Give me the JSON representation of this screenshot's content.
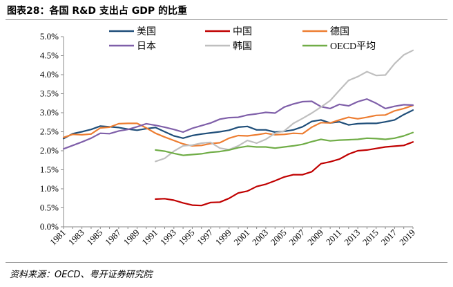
{
  "figure": {
    "title": "图表28：各国 R&D 支出占 GDP 的比重",
    "source": "资料来源：OECD、粤开证券研究院"
  },
  "chart_data": {
    "type": "line",
    "title": "图表28：各国 R&D 支出占 GDP 的比重",
    "xlabel": "",
    "ylabel": "",
    "x": [
      1981,
      1982,
      1983,
      1984,
      1985,
      1986,
      1987,
      1988,
      1989,
      1990,
      1991,
      1992,
      1993,
      1994,
      1995,
      1996,
      1997,
      1998,
      1999,
      2000,
      2001,
      2002,
      2003,
      2004,
      2005,
      2006,
      2007,
      2008,
      2009,
      2010,
      2011,
      2012,
      2013,
      2014,
      2015,
      2016,
      2017,
      2018,
      2019
    ],
    "x_ticks": [
      "1981",
      "1983",
      "1985",
      "1987",
      "1989",
      "1991",
      "1993",
      "1995",
      "1997",
      "1999",
      "2001",
      "2003",
      "2005",
      "2007",
      "2009",
      "2011",
      "2013",
      "2015",
      "2017",
      "2019"
    ],
    "y_ticks": [
      "0.0%",
      "0.5%",
      "1.0%",
      "1.5%",
      "2.0%",
      "2.5%",
      "3.0%",
      "3.5%",
      "4.0%",
      "4.5%",
      "5.0%"
    ],
    "ylim": [
      0,
      5.0
    ],
    "y_unit": "%",
    "grid": false,
    "legend_position": "top",
    "series": [
      {
        "name": "美国",
        "color": "#1f4e79",
        "values": [
          2.32,
          2.45,
          2.5,
          2.56,
          2.65,
          2.63,
          2.61,
          2.57,
          2.54,
          2.58,
          2.61,
          2.5,
          2.39,
          2.33,
          2.4,
          2.44,
          2.47,
          2.5,
          2.54,
          2.62,
          2.64,
          2.55,
          2.55,
          2.49,
          2.51,
          2.55,
          2.63,
          2.77,
          2.81,
          2.73,
          2.76,
          2.68,
          2.71,
          2.72,
          2.72,
          2.76,
          2.81,
          2.95,
          3.07
        ]
      },
      {
        "name": "中国",
        "color": "#c00000",
        "values": [
          null,
          null,
          null,
          null,
          null,
          null,
          null,
          null,
          null,
          null,
          0.73,
          0.74,
          0.7,
          0.63,
          0.57,
          0.56,
          0.64,
          0.65,
          0.75,
          0.89,
          0.94,
          1.06,
          1.12,
          1.21,
          1.31,
          1.37,
          1.37,
          1.45,
          1.66,
          1.71,
          1.78,
          1.91,
          2.0,
          2.02,
          2.06,
          2.1,
          2.12,
          2.14,
          2.23
        ]
      },
      {
        "name": "德国",
        "color": "#ed7d31",
        "values": [
          2.35,
          2.43,
          2.42,
          2.44,
          2.6,
          2.62,
          2.71,
          2.72,
          2.72,
          2.6,
          2.46,
          2.36,
          2.27,
          2.18,
          2.13,
          2.14,
          2.19,
          2.21,
          2.33,
          2.4,
          2.39,
          2.42,
          2.46,
          2.42,
          2.43,
          2.46,
          2.45,
          2.62,
          2.74,
          2.73,
          2.81,
          2.88,
          2.84,
          2.88,
          2.93,
          2.94,
          3.05,
          3.11,
          3.19
        ]
      },
      {
        "name": "日本",
        "color": "#7f5fa9",
        "values": [
          2.05,
          2.14,
          2.23,
          2.33,
          2.46,
          2.45,
          2.52,
          2.56,
          2.63,
          2.71,
          2.67,
          2.62,
          2.56,
          2.49,
          2.59,
          2.66,
          2.73,
          2.83,
          2.87,
          2.88,
          2.94,
          2.97,
          3.01,
          2.99,
          3.15,
          3.23,
          3.29,
          3.3,
          3.16,
          3.11,
          3.22,
          3.18,
          3.29,
          3.36,
          3.25,
          3.11,
          3.17,
          3.21,
          3.2
        ]
      },
      {
        "name": "韩国",
        "color": "#bfbfbf",
        "values": [
          null,
          null,
          null,
          null,
          null,
          null,
          null,
          null,
          null,
          null,
          1.72,
          1.8,
          1.99,
          2.13,
          2.15,
          2.2,
          2.22,
          2.07,
          2.03,
          2.13,
          2.27,
          2.2,
          2.3,
          2.46,
          2.52,
          2.72,
          2.85,
          2.99,
          3.15,
          3.32,
          3.59,
          3.85,
          3.95,
          4.08,
          3.98,
          3.99,
          4.29,
          4.52,
          4.64
        ]
      },
      {
        "name": "OECD平均",
        "color": "#70ad47",
        "values": [
          null,
          null,
          null,
          null,
          null,
          null,
          null,
          null,
          null,
          null,
          2.02,
          1.99,
          1.93,
          1.88,
          1.9,
          1.92,
          1.96,
          1.98,
          2.02,
          2.08,
          2.12,
          2.1,
          2.1,
          2.07,
          2.1,
          2.13,
          2.17,
          2.24,
          2.3,
          2.26,
          2.28,
          2.29,
          2.3,
          2.33,
          2.32,
          2.3,
          2.33,
          2.39,
          2.48
        ]
      }
    ]
  }
}
